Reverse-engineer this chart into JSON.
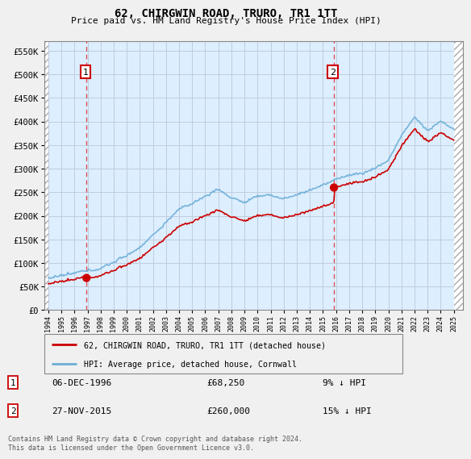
{
  "title": "62, CHIRGWIN ROAD, TRURO, TR1 1TT",
  "subtitle": "Price paid vs. HM Land Registry's House Price Index (HPI)",
  "ylim": [
    0,
    570000
  ],
  "yticks": [
    0,
    50000,
    100000,
    150000,
    200000,
    250000,
    300000,
    350000,
    400000,
    450000,
    500000,
    550000
  ],
  "ytick_labels": [
    "£0",
    "£50K",
    "£100K",
    "£150K",
    "£200K",
    "£250K",
    "£300K",
    "£350K",
    "£400K",
    "£450K",
    "£500K",
    "£550K"
  ],
  "sale1_year": 1996.92,
  "sale1_price": 68250,
  "sale1_date_str": "06-DEC-1996",
  "sale1_price_str": "£68,250",
  "sale1_pct": "9% ↓ HPI",
  "sale2_year": 2015.84,
  "sale2_price": 260000,
  "sale2_date_str": "27-NOV-2015",
  "sale2_price_str": "£260,000",
  "sale2_pct": "15% ↓ HPI",
  "legend_line1": "62, CHIRGWIN ROAD, TRURO, TR1 1TT (detached house)",
  "legend_line2": "HPI: Average price, detached house, Cornwall",
  "footer": "Contains HM Land Registry data © Crown copyright and database right 2024.\nThis data is licensed under the Open Government Licence v3.0.",
  "hpi_color": "#6baed6",
  "price_color": "#cc0000",
  "sale_dot_color": "#cc0000",
  "annotation_box_color": "#cc0000",
  "vline_color": "#e05050",
  "bg_color": "#f0f0f0",
  "plot_bg_color": "#ddeeff",
  "xlim_left": 1993.7,
  "xlim_right": 2025.7
}
